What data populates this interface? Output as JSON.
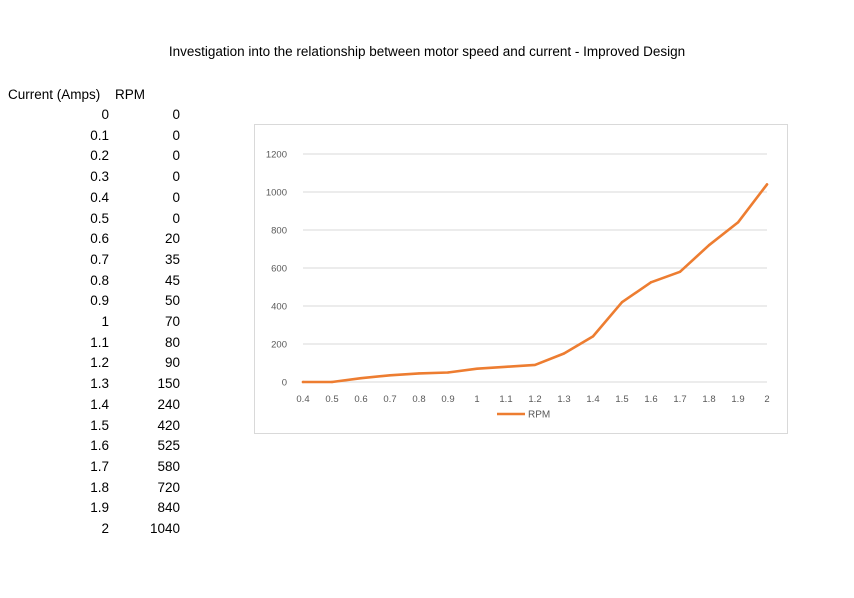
{
  "title": "Investigation into the relationship between motor speed and current - Improved Design",
  "table": {
    "headers": [
      "Current (Amps)",
      "RPM"
    ],
    "rows": [
      [
        "0",
        "0"
      ],
      [
        "0.1",
        "0"
      ],
      [
        "0.2",
        "0"
      ],
      [
        "0.3",
        "0"
      ],
      [
        "0.4",
        "0"
      ],
      [
        "0.5",
        "0"
      ],
      [
        "0.6",
        "20"
      ],
      [
        "0.7",
        "35"
      ],
      [
        "0.8",
        "45"
      ],
      [
        "0.9",
        "50"
      ],
      [
        "1",
        "70"
      ],
      [
        "1.1",
        "80"
      ],
      [
        "1.2",
        "90"
      ],
      [
        "1.3",
        "150"
      ],
      [
        "1.4",
        "240"
      ],
      [
        "1.5",
        "420"
      ],
      [
        "1.6",
        "525"
      ],
      [
        "1.7",
        "580"
      ],
      [
        "1.8",
        "720"
      ],
      [
        "1.9",
        "840"
      ],
      [
        "2",
        "1040"
      ]
    ]
  },
  "chart_data": {
    "type": "line",
    "title": "",
    "xlabel": "",
    "ylabel": "",
    "categories": [
      "0.4",
      "0.5",
      "0.6",
      "0.7",
      "0.8",
      "0.9",
      "1",
      "1.1",
      "1.2",
      "1.3",
      "1.4",
      "1.5",
      "1.6",
      "1.7",
      "1.8",
      "1.9",
      "2"
    ],
    "series": [
      {
        "name": "RPM",
        "values": [
          0,
          0,
          20,
          35,
          45,
          50,
          70,
          80,
          90,
          150,
          240,
          420,
          525,
          580,
          720,
          840,
          1040
        ],
        "color": "#ED7D31"
      }
    ],
    "ylim": [
      0,
      1200
    ],
    "yticks": [
      0,
      200,
      400,
      600,
      800,
      1000,
      1200
    ],
    "grid": true,
    "legend": "bottom",
    "gridline_color": "#d9d9d9",
    "axis_color": "#d9d9d9"
  }
}
